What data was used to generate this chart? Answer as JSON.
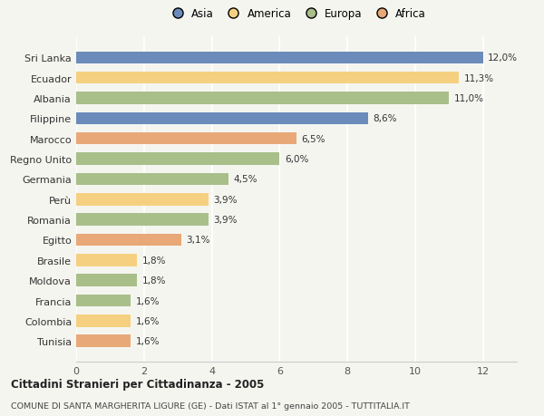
{
  "categories": [
    "Tunisia",
    "Colombia",
    "Francia",
    "Moldova",
    "Brasile",
    "Egitto",
    "Romania",
    "Perù",
    "Germania",
    "Regno Unito",
    "Marocco",
    "Filippine",
    "Albania",
    "Ecuador",
    "Sri Lanka"
  ],
  "values": [
    1.6,
    1.6,
    1.6,
    1.8,
    1.8,
    3.1,
    3.9,
    3.9,
    4.5,
    6.0,
    6.5,
    8.6,
    11.0,
    11.3,
    12.0
  ],
  "bar_colors": [
    "#e8a878",
    "#f5d080",
    "#a8bf8a",
    "#a8bf8a",
    "#f5d080",
    "#e8a878",
    "#a8bf8a",
    "#f5d080",
    "#a8bf8a",
    "#a8bf8a",
    "#e8a878",
    "#6b8cba",
    "#a8bf8a",
    "#f5d080",
    "#6b8cba"
  ],
  "labels": [
    "1,6%",
    "1,6%",
    "1,6%",
    "1,8%",
    "1,8%",
    "3,1%",
    "3,9%",
    "3,9%",
    "4,5%",
    "6,0%",
    "6,5%",
    "8,6%",
    "11,0%",
    "11,3%",
    "12,0%"
  ],
  "xlim": [
    0,
    13.0
  ],
  "xticks": [
    0,
    2,
    4,
    6,
    8,
    10,
    12
  ],
  "title": "Cittadini Stranieri per Cittadinanza - 2005",
  "subtitle": "COMUNE DI SANTA MARGHERITA LIGURE (GE) - Dati ISTAT al 1° gennaio 2005 - TUTTITALIA.IT",
  "legend_labels": [
    "Asia",
    "America",
    "Europa",
    "Africa"
  ],
  "legend_colors": [
    "#6b8cba",
    "#f5d080",
    "#a8bf8a",
    "#e8a878"
  ],
  "bg_color": "#f5f5f0",
  "bar_height": 0.6
}
